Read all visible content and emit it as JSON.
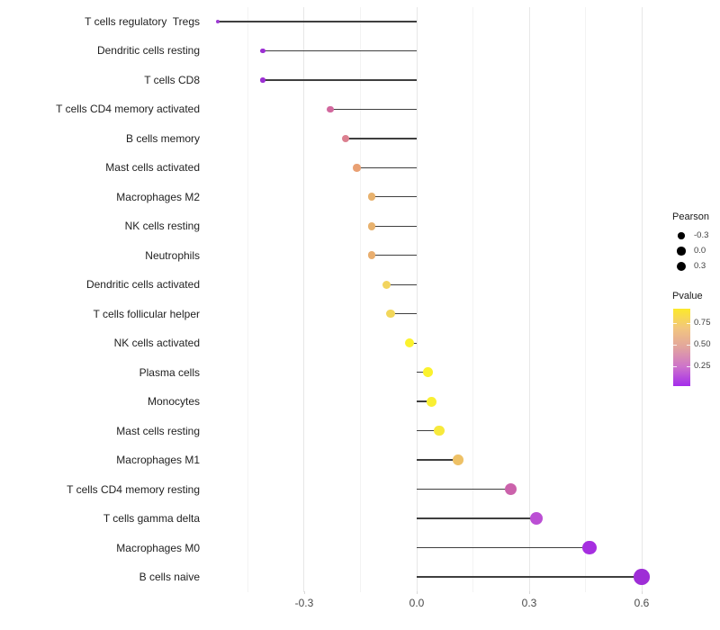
{
  "chart_data": {
    "type": "lollipop",
    "title": "",
    "xlabel": "",
    "ylabel": "",
    "x_axis": {
      "major_ticks": [
        {
          "label": "-0.3",
          "value": -0.3
        },
        {
          "label": "0.0",
          "value": 0.0
        },
        {
          "label": "0.3",
          "value": 0.3
        },
        {
          "label": "0.6",
          "value": 0.6
        }
      ],
      "minor_ticks": [
        -0.45,
        -0.15,
        0.15,
        0.45
      ],
      "xlim": [
        -0.565,
        0.645
      ]
    },
    "rows": [
      {
        "name": "T cells regulatory  Tregs",
        "pearson": -0.53,
        "pvalue": 0.02,
        "color": "#9d3bd2"
      },
      {
        "name": "Dendritic cells resting",
        "pearson": -0.41,
        "pvalue": 0.06,
        "color": "#9c2fd3"
      },
      {
        "name": "T cells CD8",
        "pearson": -0.41,
        "pvalue": 0.07,
        "color": "#9c2fd3"
      },
      {
        "name": "T cells CD4 memory activated",
        "pearson": -0.23,
        "pvalue": 0.31,
        "color": "#d2689e"
      },
      {
        "name": "B cells memory",
        "pearson": -0.19,
        "pvalue": 0.4,
        "color": "#dc8090"
      },
      {
        "name": "Mast cells activated",
        "pearson": -0.16,
        "pvalue": 0.52,
        "color": "#e9a073"
      },
      {
        "name": "Macrophages M2",
        "pearson": -0.12,
        "pvalue": 0.62,
        "color": "#e8b26e"
      },
      {
        "name": "NK cells resting",
        "pearson": -0.12,
        "pvalue": 0.62,
        "color": "#e8b26e"
      },
      {
        "name": "Neutrophils",
        "pearson": -0.12,
        "pvalue": 0.61,
        "color": "#e9ae6e"
      },
      {
        "name": "Dendritic cells activated",
        "pearson": -0.08,
        "pvalue": 0.76,
        "color": "#f2d45e"
      },
      {
        "name": "T cells follicular helper",
        "pearson": -0.07,
        "pvalue": 0.77,
        "color": "#f2d75a"
      },
      {
        "name": "NK cells activated",
        "pearson": -0.02,
        "pvalue": 0.93,
        "color": "#fbf22d"
      },
      {
        "name": "Plasma cells",
        "pearson": 0.03,
        "pvalue": 0.92,
        "color": "#fbf22d"
      },
      {
        "name": "Monocytes",
        "pearson": 0.04,
        "pvalue": 0.9,
        "color": "#f9ef33"
      },
      {
        "name": "Mast cells resting",
        "pearson": 0.06,
        "pvalue": 0.88,
        "color": "#f7e93c"
      },
      {
        "name": "Macrophages M1",
        "pearson": 0.11,
        "pvalue": 0.66,
        "color": "#eec166"
      },
      {
        "name": "T cells CD4 memory resting",
        "pearson": 0.25,
        "pvalue": 0.27,
        "color": "#cb62ab"
      },
      {
        "name": "T cells gamma delta",
        "pearson": 0.32,
        "pvalue": 0.14,
        "color": "#bb4fd4"
      },
      {
        "name": "Macrophages M0",
        "pearson": 0.46,
        "pvalue": 0.04,
        "color": "#a62fe0"
      },
      {
        "name": "B cells naive",
        "pearson": 0.6,
        "pvalue": 0.01,
        "color": "#9e2ed6"
      }
    ]
  },
  "legend": {
    "pearson": {
      "title": "Pearson",
      "dot_color": "#000000",
      "entries": [
        {
          "label": "-0.3",
          "size": 7.5
        },
        {
          "label": "0.0",
          "size": 9.3
        },
        {
          "label": "0.3",
          "size": 10.5
        }
      ]
    },
    "pvalue": {
      "title": "Pvalue",
      "gradient_top_to_bottom": [
        "#fce92b",
        "#f2c67e",
        "#e2a49e",
        "#cd73cb",
        "#a42ceb"
      ],
      "ticks": [
        {
          "label": "0.75",
          "pos": 0.186
        },
        {
          "label": "0.50",
          "pos": 0.465
        },
        {
          "label": "0.25",
          "pos": 0.744
        }
      ]
    }
  },
  "colors": {
    "stick": "#3f3f3f",
    "grid_major": "#e7e7e7",
    "grid_minor": "#f3f3f3",
    "axis_text": "#4a4a4a",
    "category_text": "#1f1f1f"
  }
}
